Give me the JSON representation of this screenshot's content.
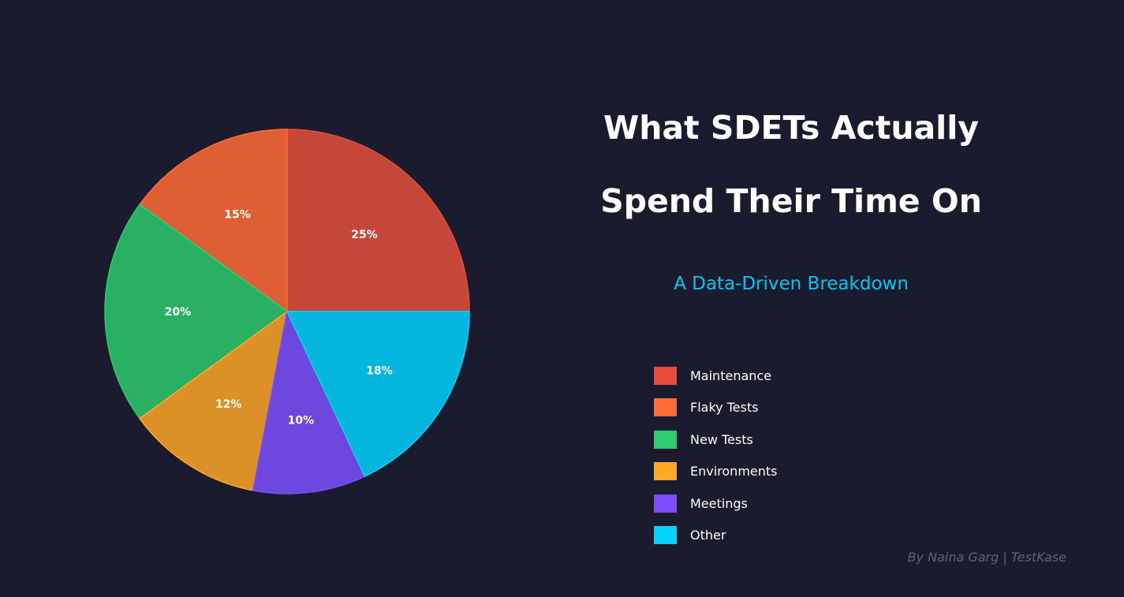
{
  "title_line1": "What SDETs Actually",
  "title_line2": "Spend Their Time On",
  "subtitle": "A Data-Driven Breakdown",
  "credit": "By Naina Garg | TestKase",
  "chart_data": {
    "type": "pie",
    "start_angle_deg": 0,
    "direction": "counterclockwise",
    "categories": [
      "Maintenance",
      "Flaky Tests",
      "New Tests",
      "Environments",
      "Meetings",
      "Other"
    ],
    "values": [
      25,
      15,
      20,
      12,
      10,
      18
    ],
    "labels": [
      "25%",
      "15%",
      "20%",
      "12%",
      "10%",
      "18%"
    ],
    "colors": [
      "#e74c3c",
      "#ff6b35",
      "#2ecc71",
      "#ffa726",
      "#7c4dff",
      "#00d4ff"
    ],
    "fill_colors": [
      "#c5473a",
      "#df5f34",
      "#29b063",
      "#db9127",
      "#6e48de",
      "#04b6de"
    ],
    "legend_position": "right"
  }
}
